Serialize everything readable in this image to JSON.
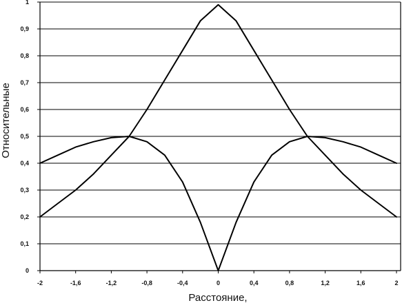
{
  "chart_data": {
    "type": "line",
    "title": "",
    "xlabel": "Расстояние,",
    "ylabel": "Относительные",
    "xlim": [
      -2,
      2
    ],
    "ylim": [
      0,
      1
    ],
    "x_ticks": [
      "-2",
      "-1,6",
      "-1,2",
      "-0,8",
      "-0,4",
      "0",
      "0,4",
      "0,8",
      "1,2",
      "1,6",
      "2"
    ],
    "x_tick_values": [
      -2,
      -1.6,
      -1.2,
      -0.8,
      -0.4,
      0,
      0.4,
      0.8,
      1.2,
      1.6,
      2
    ],
    "y_ticks": [
      "0",
      "0,1",
      "0,2",
      "0,3",
      "0,4",
      "0,5",
      "0,6",
      "0,7",
      "0,8",
      "0,9",
      "1"
    ],
    "y_tick_values": [
      0,
      0.1,
      0.2,
      0.3,
      0.4,
      0.5,
      0.6,
      0.7,
      0.8,
      0.9,
      1
    ],
    "grid": true,
    "legend": "none",
    "series": [
      {
        "x": [
          -2,
          -1.8,
          -1.6,
          -1.4,
          -1.2,
          -1.0,
          -0.8,
          -0.6,
          -0.4,
          -0.2,
          0,
          0.2,
          0.4,
          0.6,
          0.8,
          1.0,
          1.2,
          1.4,
          1.6,
          1.8,
          2
        ],
        "y": [
          0.2,
          0.25,
          0.3,
          0.36,
          0.43,
          0.5,
          0.6,
          0.71,
          0.82,
          0.93,
          0.99,
          0.93,
          0.82,
          0.71,
          0.6,
          0.5,
          0.43,
          0.36,
          0.3,
          0.25,
          0.2
        ]
      },
      {
        "x": [
          -2,
          -1.8,
          -1.6,
          -1.4,
          -1.2,
          -1.0,
          -0.8,
          -0.6,
          -0.4,
          -0.2,
          0,
          0.2,
          0.4,
          0.6,
          0.8,
          1.0,
          1.2,
          1.4,
          1.6,
          1.8,
          2
        ],
        "y": [
          0.4,
          0.43,
          0.46,
          0.48,
          0.495,
          0.5,
          0.48,
          0.43,
          0.33,
          0.18,
          0.0,
          0.18,
          0.33,
          0.43,
          0.48,
          0.5,
          0.495,
          0.48,
          0.46,
          0.43,
          0.4
        ]
      }
    ]
  }
}
